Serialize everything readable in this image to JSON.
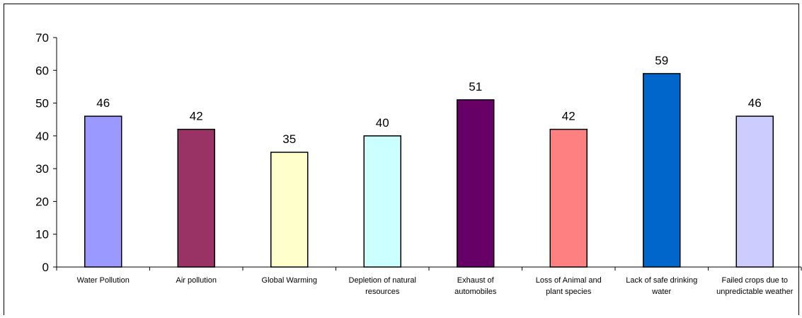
{
  "chart_data": {
    "type": "bar",
    "categories": [
      [
        "Water Pollution"
      ],
      [
        "Air pollution"
      ],
      [
        "Global Warming"
      ],
      [
        "Depletion of natural",
        "resources"
      ],
      [
        "Exhaust of",
        "automobiles"
      ],
      [
        "Loss of Animal and",
        "plant species"
      ],
      [
        "Lack of safe drinking",
        "water"
      ],
      [
        "Failed crops due to",
        "unpredictable weather"
      ]
    ],
    "values": [
      46,
      42,
      35,
      40,
      51,
      42,
      59,
      46
    ],
    "colors": [
      "#9999ff",
      "#993366",
      "#ffffcc",
      "#ccffff",
      "#660066",
      "#ff8080",
      "#0066cc",
      "#ccccff"
    ],
    "ylim": [
      0,
      70
    ],
    "yticks": [
      0,
      10,
      20,
      30,
      40,
      50,
      60,
      70
    ],
    "show_data_labels": true,
    "grid": false,
    "legend": "none"
  }
}
